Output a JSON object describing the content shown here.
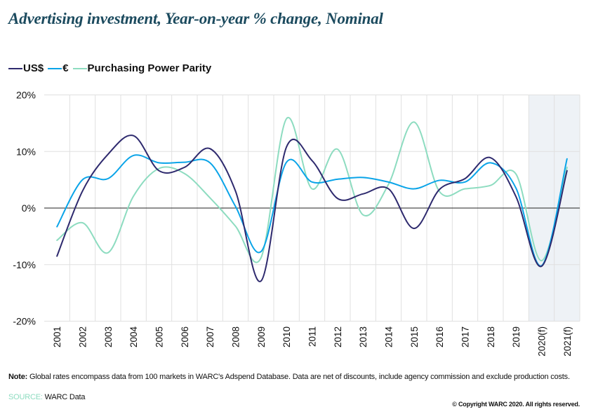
{
  "title": "Advertising investment, Year-on-year % change, Nominal",
  "legend": [
    {
      "label": "US$",
      "color": "#2e2a6e"
    },
    {
      "label": "€",
      "color": "#0aa4e8"
    },
    {
      "label": "Purchasing Power Parity",
      "color": "#8ddcc0"
    }
  ],
  "footer": {
    "note_label": "Note:",
    "note_text": " Global rates encompass data from 100 markets in WARC's Adspend Database. Data are net of discounts, include agency commission and exclude production costs.",
    "source_label": "SOURCE:",
    "source_text": " WARC Data",
    "copyright": "© Copyright WARC 2020. All rights reserved."
  },
  "chart_data": {
    "type": "line",
    "title": "Advertising investment, Year-on-year % change, Nominal",
    "xlabel": "",
    "ylabel": "",
    "categories": [
      "2001",
      "2002",
      "2003",
      "2004",
      "2005",
      "2006",
      "2007",
      "2008",
      "2009",
      "2010",
      "2011",
      "2012",
      "2013",
      "2014",
      "2015",
      "2016",
      "2017",
      "2018",
      "2019",
      "2020(f)",
      "2021(f)"
    ],
    "forecast_categories": [
      "2020(f)",
      "2021(f)"
    ],
    "y_ticks": [
      20,
      10,
      0,
      -10,
      -20
    ],
    "y_tick_labels": [
      "20%",
      "10%",
      "0%",
      "-10%",
      "-20%"
    ],
    "ylim": [
      -20,
      20
    ],
    "grid": true,
    "legend_position": "top-left",
    "smooth": true,
    "series": [
      {
        "name": "US$",
        "color": "#2e2a6e",
        "values": [
          -8.5,
          3.0,
          9.5,
          12.8,
          6.6,
          7.2,
          10.5,
          3.0,
          -12.9,
          10.8,
          8.4,
          1.7,
          2.5,
          3.4,
          -3.6,
          3.3,
          5.2,
          8.9,
          2.0,
          -10.3,
          6.6
        ]
      },
      {
        "name": "€",
        "color": "#0aa4e8",
        "values": [
          -3.3,
          5.0,
          5.2,
          9.3,
          8.0,
          8.1,
          8.0,
          0.3,
          -7.7,
          8.1,
          4.6,
          5.1,
          5.4,
          4.6,
          3.4,
          4.9,
          4.6,
          8.0,
          3.5,
          -10.2,
          8.7
        ]
      },
      {
        "name": "Purchasing Power Parity",
        "color": "#8ddcc0",
        "values": [
          -5.7,
          -2.6,
          -7.9,
          2.1,
          7.0,
          6.1,
          1.8,
          -3.2,
          -8.8,
          15.8,
          3.4,
          10.4,
          -1.2,
          4.2,
          15.2,
          2.9,
          3.4,
          4.0,
          6.0,
          -9.3,
          7.2
        ]
      }
    ]
  }
}
